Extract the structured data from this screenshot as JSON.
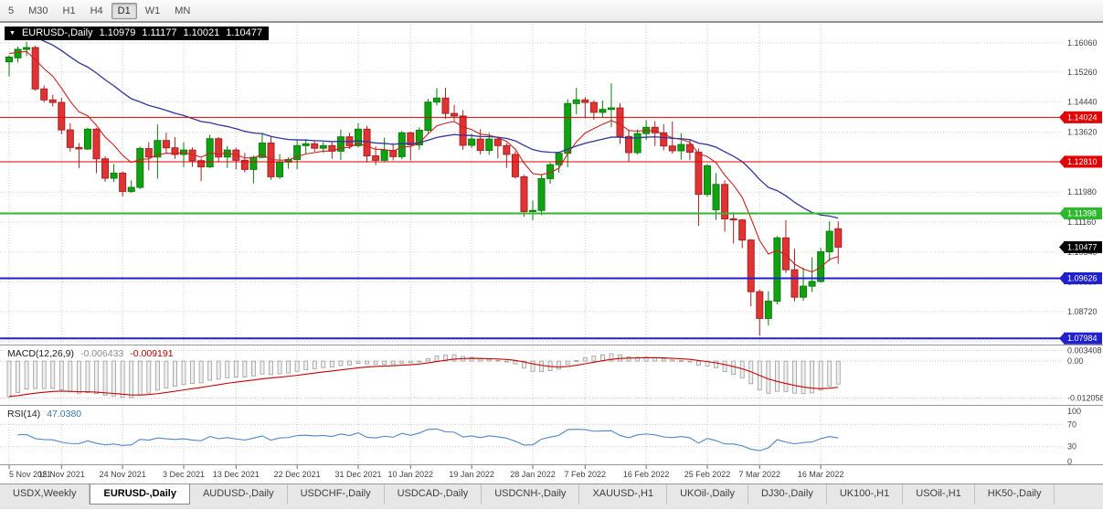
{
  "toolbar": {
    "buttons": [
      "5",
      "M30",
      "H1",
      "H4",
      "D1",
      "W1",
      "MN"
    ],
    "active": "D1"
  },
  "chart_title": {
    "dropdown_icon": "▼",
    "symbol": "EURUSD-,Daily",
    "open": "1.10979",
    "high": "1.11177",
    "low": "1.10021",
    "close": "1.10477"
  },
  "chart_data": {
    "type": "candlestick",
    "symbol": "EURUSD-",
    "timeframe": "Daily",
    "dates": [
      "2021-11-05",
      "2021-11-08",
      "2021-11-09",
      "2021-11-10",
      "2021-11-11",
      "2021-11-12",
      "2021-11-15",
      "2021-11-16",
      "2021-11-17",
      "2021-11-18",
      "2021-11-19",
      "2021-11-22",
      "2021-11-23",
      "2021-11-24",
      "2021-11-25",
      "2021-11-26",
      "2021-11-29",
      "2021-11-30",
      "2021-12-01",
      "2021-12-02",
      "2021-12-03",
      "2021-12-06",
      "2021-12-07",
      "2021-12-08",
      "2021-12-09",
      "2021-12-10",
      "2021-12-13",
      "2021-12-14",
      "2021-12-15",
      "2021-12-16",
      "2021-12-17",
      "2021-12-20",
      "2021-12-21",
      "2021-12-22",
      "2021-12-23",
      "2021-12-24",
      "2021-12-27",
      "2021-12-28",
      "2021-12-29",
      "2021-12-30",
      "2021-12-31",
      "2022-01-03",
      "2022-01-04",
      "2022-01-05",
      "2022-01-06",
      "2022-01-07",
      "2022-01-10",
      "2022-01-11",
      "2022-01-12",
      "2022-01-13",
      "2022-01-14",
      "2022-01-17",
      "2022-01-18",
      "2022-01-19",
      "2022-01-20",
      "2022-01-21",
      "2022-01-24",
      "2022-01-25",
      "2022-01-26",
      "2022-01-27",
      "2022-01-28",
      "2022-01-31",
      "2022-02-01",
      "2022-02-02",
      "2022-02-03",
      "2022-02-04",
      "2022-02-07",
      "2022-02-08",
      "2022-02-09",
      "2022-02-10",
      "2022-02-11",
      "2022-02-14",
      "2022-02-15",
      "2022-02-16",
      "2022-02-17",
      "2022-02-18",
      "2022-02-21",
      "2022-02-22",
      "2022-02-23",
      "2022-02-24",
      "2022-02-25",
      "2022-02-28",
      "2022-03-01",
      "2022-03-02",
      "2022-03-03",
      "2022-03-04",
      "2022-03-07",
      "2022-03-08",
      "2022-03-09",
      "2022-03-10",
      "2022-03-11",
      "2022-03-14",
      "2022-03-15",
      "2022-03-16",
      "2022-03-17",
      "2022-03-18"
    ],
    "candles": [
      [
        1.1554,
        1.1572,
        1.1514,
        1.1567
      ],
      [
        1.1565,
        1.1596,
        1.1552,
        1.1588
      ],
      [
        1.1588,
        1.1609,
        1.157,
        1.1593
      ],
      [
        1.1593,
        1.1598,
        1.1475,
        1.148
      ],
      [
        1.148,
        1.1489,
        1.1443,
        1.145
      ],
      [
        1.145,
        1.1464,
        1.1432,
        1.1443
      ],
      [
        1.1443,
        1.1456,
        1.1356,
        1.1368
      ],
      [
        1.1368,
        1.1386,
        1.1309,
        1.132
      ],
      [
        1.132,
        1.1332,
        1.1263,
        1.1316
      ],
      [
        1.1316,
        1.1374,
        1.1313,
        1.137
      ],
      [
        1.137,
        1.1374,
        1.125,
        1.1289
      ],
      [
        1.1289,
        1.1296,
        1.1226,
        1.1236
      ],
      [
        1.1236,
        1.1275,
        1.1226,
        1.125
      ],
      [
        1.125,
        1.1255,
        1.1186,
        1.12
      ],
      [
        1.12,
        1.123,
        1.1196,
        1.1211
      ],
      [
        1.1211,
        1.1323,
        1.1206,
        1.1317
      ],
      [
        1.1317,
        1.1335,
        1.1258,
        1.1294
      ],
      [
        1.1294,
        1.1383,
        1.1235,
        1.1339
      ],
      [
        1.1339,
        1.136,
        1.1304,
        1.1319
      ],
      [
        1.1319,
        1.1348,
        1.1289,
        1.1301
      ],
      [
        1.1301,
        1.1334,
        1.1266,
        1.1313
      ],
      [
        1.1313,
        1.132,
        1.1267,
        1.1284
      ],
      [
        1.1284,
        1.129,
        1.1228,
        1.1267
      ],
      [
        1.1267,
        1.1355,
        1.1264,
        1.1344
      ],
      [
        1.1344,
        1.1348,
        1.1279,
        1.1294
      ],
      [
        1.1294,
        1.1324,
        1.1264,
        1.1313
      ],
      [
        1.1313,
        1.1319,
        1.126,
        1.1285
      ],
      [
        1.1285,
        1.1305,
        1.1252,
        1.126
      ],
      [
        1.126,
        1.1298,
        1.1222,
        1.1293
      ],
      [
        1.1293,
        1.136,
        1.1291,
        1.1332
      ],
      [
        1.1332,
        1.1349,
        1.1232,
        1.124
      ],
      [
        1.124,
        1.1302,
        1.1234,
        1.128
      ],
      [
        1.128,
        1.1293,
        1.1262,
        1.1287
      ],
      [
        1.1287,
        1.1342,
        1.1261,
        1.1325
      ],
      [
        1.1325,
        1.1343,
        1.1303,
        1.133
      ],
      [
        1.133,
        1.1338,
        1.1308,
        1.1318
      ],
      [
        1.1318,
        1.1335,
        1.1306,
        1.1325
      ],
      [
        1.1325,
        1.1334,
        1.1289,
        1.131
      ],
      [
        1.131,
        1.1369,
        1.1286,
        1.1349
      ],
      [
        1.1349,
        1.136,
        1.1316,
        1.1325
      ],
      [
        1.1325,
        1.1386,
        1.132,
        1.137
      ],
      [
        1.137,
        1.1379,
        1.1279,
        1.1297
      ],
      [
        1.1297,
        1.1323,
        1.1272,
        1.1285
      ],
      [
        1.1285,
        1.1347,
        1.128,
        1.1312
      ],
      [
        1.1312,
        1.1332,
        1.1285,
        1.1295
      ],
      [
        1.1295,
        1.1365,
        1.1288,
        1.136
      ],
      [
        1.136,
        1.1363,
        1.1285,
        1.1327
      ],
      [
        1.1327,
        1.1375,
        1.1314,
        1.1367
      ],
      [
        1.1367,
        1.1453,
        1.1359,
        1.1444
      ],
      [
        1.1444,
        1.1482,
        1.1435,
        1.1455
      ],
      [
        1.1455,
        1.1483,
        1.1398,
        1.1413
      ],
      [
        1.1413,
        1.1436,
        1.1393,
        1.1406
      ],
      [
        1.1406,
        1.1422,
        1.1314,
        1.1326
      ],
      [
        1.1326,
        1.1357,
        1.1318,
        1.1343
      ],
      [
        1.1343,
        1.137,
        1.1301,
        1.1312
      ],
      [
        1.1312,
        1.136,
        1.13,
        1.1343
      ],
      [
        1.1343,
        1.1349,
        1.129,
        1.1325
      ],
      [
        1.1325,
        1.1332,
        1.1264,
        1.1301
      ],
      [
        1.1301,
        1.131,
        1.1235,
        1.124
      ],
      [
        1.124,
        1.1245,
        1.1131,
        1.1145
      ],
      [
        1.1145,
        1.1175,
        1.1121,
        1.1148
      ],
      [
        1.1148,
        1.1247,
        1.1135,
        1.1235
      ],
      [
        1.1235,
        1.1279,
        1.1221,
        1.1273
      ],
      [
        1.1273,
        1.1305,
        1.1251,
        1.1304
      ],
      [
        1.1304,
        1.1452,
        1.1266,
        1.144
      ],
      [
        1.144,
        1.1483,
        1.1411,
        1.145
      ],
      [
        1.145,
        1.1458,
        1.1399,
        1.1443
      ],
      [
        1.1443,
        1.1449,
        1.1396,
        1.1416
      ],
      [
        1.1416,
        1.1448,
        1.1403,
        1.1424
      ],
      [
        1.1424,
        1.1495,
        1.1375,
        1.1428
      ],
      [
        1.1428,
        1.1441,
        1.133,
        1.135
      ],
      [
        1.135,
        1.1369,
        1.128,
        1.1306
      ],
      [
        1.1306,
        1.1369,
        1.1301,
        1.1358
      ],
      [
        1.1358,
        1.1395,
        1.134,
        1.1375
      ],
      [
        1.1375,
        1.1392,
        1.1324,
        1.136
      ],
      [
        1.136,
        1.1384,
        1.1312,
        1.1324
      ],
      [
        1.1324,
        1.1391,
        1.1303,
        1.1311
      ],
      [
        1.1311,
        1.1359,
        1.1287,
        1.1328
      ],
      [
        1.1328,
        1.1343,
        1.1286,
        1.1307
      ],
      [
        1.1307,
        1.1317,
        1.1106,
        1.1192
      ],
      [
        1.1192,
        1.1274,
        1.1185,
        1.127
      ],
      [
        1.115,
        1.125,
        1.1122,
        1.1219
      ],
      [
        1.1219,
        1.123,
        1.109,
        1.1125
      ],
      [
        1.1125,
        1.1143,
        1.1058,
        1.1122
      ],
      [
        1.1122,
        1.1125,
        1.1045,
        1.1067
      ],
      [
        1.1067,
        1.107,
        1.0886,
        1.0926
      ],
      [
        1.0926,
        1.0932,
        1.0806,
        1.0853
      ],
      [
        1.0853,
        1.0927,
        1.0834,
        1.09
      ],
      [
        1.09,
        1.1078,
        1.0891,
        1.1073
      ],
      [
        1.1073,
        1.1121,
        1.0977,
        1.0986
      ],
      [
        1.0986,
        1.1043,
        1.09,
        1.0911
      ],
      [
        1.0911,
        1.0992,
        1.0901,
        1.0941
      ],
      [
        1.0941,
        1.102,
        1.0925,
        1.0954
      ],
      [
        1.0954,
        1.1046,
        1.095,
        1.1035
      ],
      [
        1.1035,
        1.1118,
        1.1009,
        1.1091
      ],
      [
        1.10979,
        1.11177,
        1.10021,
        1.10477
      ]
    ],
    "x_axis": {
      "labels": [
        "5 Nov 2021",
        "15 Nov 2021",
        "24 Nov 2021",
        "3 Dec 2021",
        "13 Dec 2021",
        "22 Dec 2021",
        "31 Dec 2021",
        "10 Jan 2022",
        "19 Jan 2022",
        "28 Jan 2022",
        "7 Feb 2022",
        "16 Feb 2022",
        "25 Feb 2022",
        "7 Mar 2022",
        "16 Mar 2022"
      ],
      "indices": [
        0,
        6,
        13,
        20,
        26,
        33,
        40,
        46,
        53,
        60,
        66,
        73,
        80,
        86,
        93
      ]
    },
    "y_axis": {
      "labels": [
        "1.16060",
        "1.15260",
        "1.14440",
        "1.13620",
        "1.12810",
        "1.11980",
        "1.11160",
        "1.10340",
        "1.09530",
        "1.08720",
        "1.07900"
      ],
      "price_max": 1.1658,
      "price_min": 1.0784
    },
    "levels": [
      {
        "price": 1.14024,
        "label": "1.14024",
        "color": "#e00000",
        "width": 1
      },
      {
        "price": 1.1281,
        "label": "1.12810",
        "color": "#e00000",
        "width": 1
      },
      {
        "price": 1.11398,
        "label": "1.11398",
        "color": "#2db82d",
        "width": 2
      },
      {
        "price": 1.09626,
        "label": "1.09626",
        "color": "#2020cc",
        "width": 2
      },
      {
        "price": 1.07984,
        "label": "1.07984",
        "color": "#2020cc",
        "width": 2
      }
    ],
    "current_price": {
      "value": 1.10477,
      "label": "1.10477",
      "badge_color": "#000000"
    },
    "moving_averages": [
      {
        "name": "fast-ma",
        "color": "#cc2020"
      },
      {
        "name": "slow-ma",
        "color": "#2f3699"
      }
    ],
    "indicators": {
      "macd": {
        "name": "MACD(12,26,9)",
        "value_main": "-0.006433",
        "value_signal": "-0.009191",
        "axis_labels": [
          "0.003408",
          "0.00",
          "-0.012058"
        ],
        "axis_values": [
          0.003408,
          0,
          -0.012058
        ],
        "hist_color": "#9c9c9c",
        "signal_color": "#cc0000",
        "scale_max": 0.0045,
        "scale_min": -0.014
      },
      "rsi": {
        "name": "RSI(14)",
        "value": "47.0380",
        "axis_labels": [
          "100",
          "70",
          "30",
          "0"
        ],
        "levels": [
          70,
          30
        ],
        "line_color": "#4f86c6",
        "scale_max": 100,
        "scale_min": 0
      }
    },
    "colors": {
      "bull_fill": "#11a211",
      "bull_border": "#0a7d0a",
      "bear_fill": "#e03434",
      "bear_border": "#a82222",
      "grid": "#cfcfcf",
      "axis_text": "#3f3f3f",
      "separator": "#989898"
    }
  },
  "tabs": [
    {
      "label": "USDX,Weekly",
      "active": false
    },
    {
      "label": "EURUSD-,Daily",
      "active": true
    },
    {
      "label": "AUDUSD-,Daily",
      "active": false
    },
    {
      "label": "USDCHF-,Daily",
      "active": false
    },
    {
      "label": "USDCAD-,Daily",
      "active": false
    },
    {
      "label": "USDCNH-,Daily",
      "active": false
    },
    {
      "label": "XAUUSD-,H1",
      "active": false
    },
    {
      "label": "UKOil-,Daily",
      "active": false
    },
    {
      "label": "DJ30-,Daily",
      "active": false
    },
    {
      "label": "UK100-,H1",
      "active": false
    },
    {
      "label": "USOil-,H1",
      "active": false
    },
    {
      "label": "HK50-,Daily",
      "active": false
    }
  ]
}
